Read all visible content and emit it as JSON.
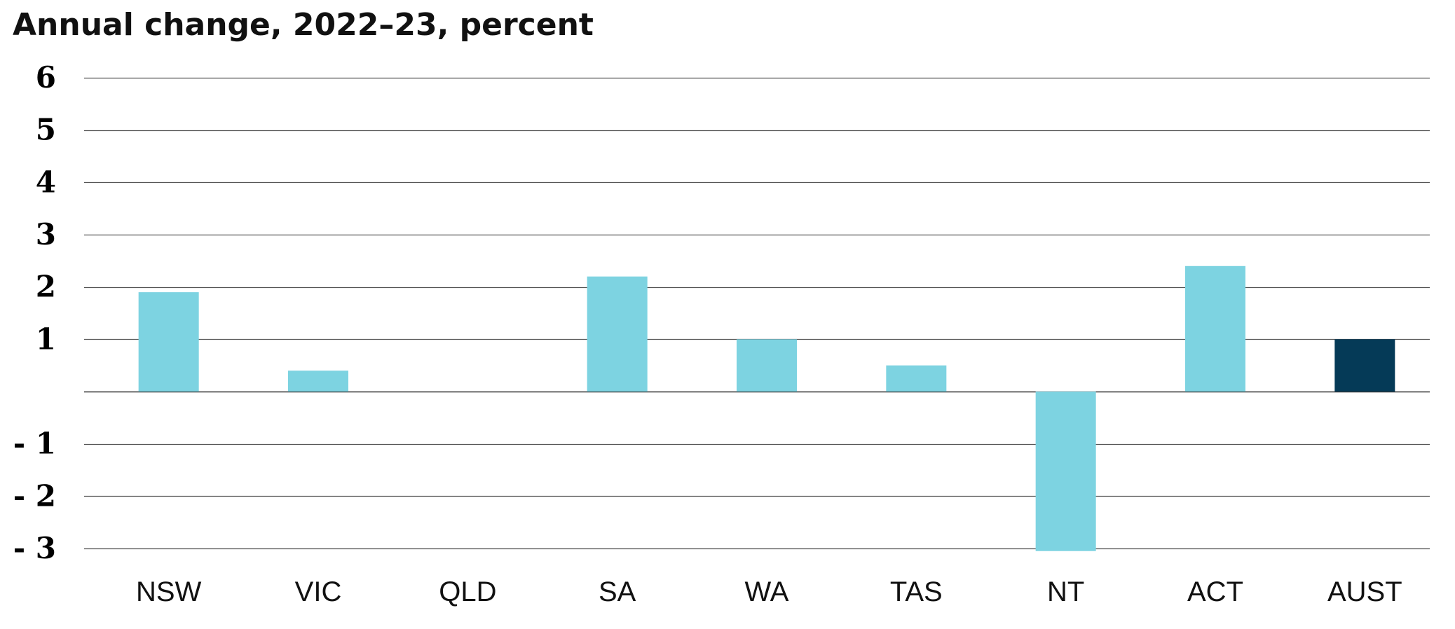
{
  "chart_data": {
    "type": "bar",
    "title": "Annual change, 2022–23, percent",
    "xlabel": "",
    "ylabel": "",
    "categories": [
      "NSW",
      "VIC",
      "QLD",
      "SA",
      "WA",
      "TAS",
      "NT",
      "ACT",
      "AUST"
    ],
    "values": [
      1.9,
      0.4,
      0.0,
      2.2,
      1.0,
      0.5,
      -3.05,
      2.4,
      1.0
    ],
    "ylim": [
      -3,
      6
    ],
    "yticks": [
      6,
      5,
      4,
      3,
      2,
      1,
      -1,
      -2,
      -3
    ],
    "ytick_labels": [
      "6",
      "5",
      "4",
      "3",
      "2",
      "1",
      "- 1",
      "- 2",
      "- 3"
    ],
    "grid": true,
    "legend": "none",
    "colors": {
      "bar": "#7dd3e1",
      "highlight_bar": "#053a57",
      "gridline": "#555555",
      "axis": "#333333"
    },
    "highlight_category": "AUST"
  }
}
